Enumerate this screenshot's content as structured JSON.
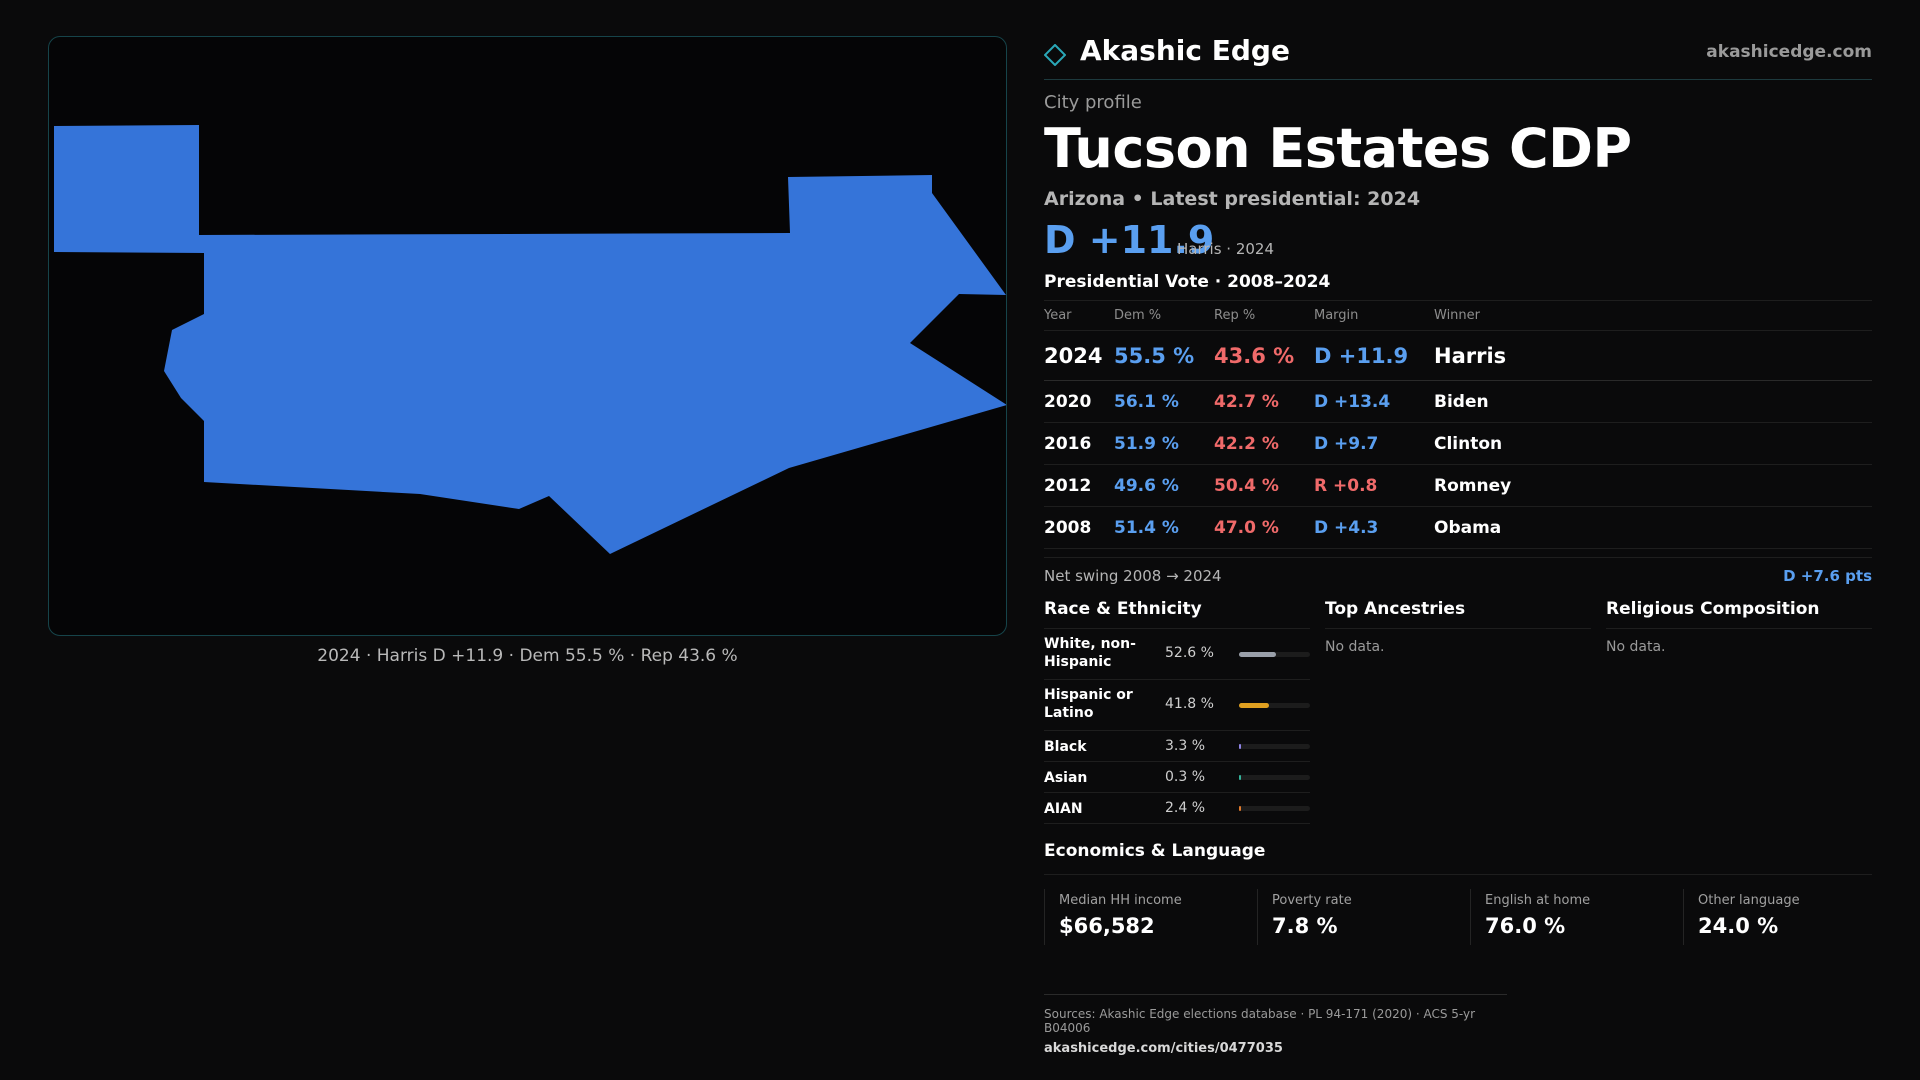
{
  "map": {
    "fill_color": "#3574d9",
    "caption": "2024 · Harris D +11.9 · Dem 55.5 % · Rep 43.6 %"
  },
  "brand": {
    "name": "Akashic Edge",
    "url": "akashicedge.com",
    "logo_icon": "diamond-icon"
  },
  "profile": {
    "kicker": "City profile",
    "title": "Tucson Estates CDP",
    "subtitle": "Arizona • Latest presidential: 2024",
    "headline_margin": "D +11.9",
    "headline_note": "Harris · 2024"
  },
  "presidential": {
    "title": "Presidential Vote · 2008–2024",
    "columns": [
      "Year",
      "Dem %",
      "Rep %",
      "Margin",
      "Winner"
    ],
    "rows": [
      {
        "year": "2024",
        "dem": "55.5 %",
        "rep": "43.6 %",
        "margin": "D +11.9",
        "winner": "Harris"
      },
      {
        "year": "2020",
        "dem": "56.1 %",
        "rep": "42.7 %",
        "margin": "D +13.4",
        "winner": "Biden"
      },
      {
        "year": "2016",
        "dem": "51.9 %",
        "rep": "42.2 %",
        "margin": "D +9.7",
        "winner": "Clinton"
      },
      {
        "year": "2012",
        "dem": "49.6 %",
        "rep": "50.4 %",
        "margin": "R +0.8",
        "winner": "Romney"
      },
      {
        "year": "2008",
        "dem": "51.4 %",
        "rep": "47.0 %",
        "margin": "D +4.3",
        "winner": "Obama"
      }
    ],
    "swing_label": "Net swing 2008 → 2024",
    "swing_value": "D +7.6 pts"
  },
  "race": {
    "title": "Race & Ethnicity",
    "rows": [
      {
        "label": "White, non-Hispanic",
        "pct": "52.6 %",
        "share": 0.526,
        "color": "#9aa0aa"
      },
      {
        "label": "Hispanic or Latino",
        "pct": "41.8 %",
        "share": 0.418,
        "color": "#e0a020"
      },
      {
        "label": "Black",
        "pct": "3.3 %",
        "share": 0.033,
        "color": "#8f84e6"
      },
      {
        "label": "Asian",
        "pct": "0.3 %",
        "share": 0.003,
        "color": "#34b39a"
      },
      {
        "label": "AIAN",
        "pct": "2.4 %",
        "share": 0.024,
        "color": "#e07a2c"
      }
    ]
  },
  "ancestries": {
    "title": "Top Ancestries",
    "empty": "No data."
  },
  "religion": {
    "title": "Religious Composition",
    "empty": "No data."
  },
  "economics": {
    "title": "Economics & Language",
    "cards": [
      {
        "label": "Median HH income",
        "value": "$66,582"
      },
      {
        "label": "Poverty rate",
        "value": "7.8 %"
      },
      {
        "label": "English at home",
        "value": "76.0 %"
      },
      {
        "label": "Other language",
        "value": "24.0 %"
      }
    ]
  },
  "footer": {
    "sources": "Sources: Akashic Edge elections database · PL 94-171 (2020) · ACS 5-yr B04006",
    "link": "akashicedge.com/cities/0477035"
  }
}
